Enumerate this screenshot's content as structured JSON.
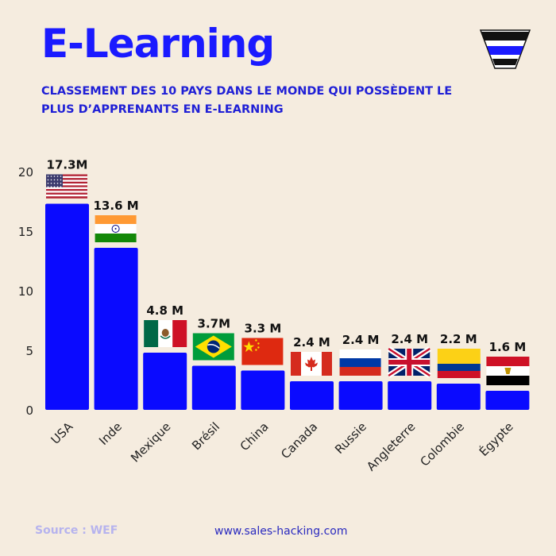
{
  "header": {
    "title": "E-Learning",
    "subtitle": "CLASSEMENT DES 10 PAYS DANS LE MONDE QUI POSSÈDENT LE PLUS D’APPRENANTS EN E-LEARNING"
  },
  "footer": {
    "source": "Source : WEF",
    "website": "www.sales-hacking.com"
  },
  "colors": {
    "bar": "#0a0aff",
    "title": "#1a1aff",
    "background": "#f5ecdf"
  },
  "chart_data": {
    "type": "bar",
    "categories": [
      "USA",
      "Inde",
      "Mexique",
      "Brésil",
      "China",
      "Canada",
      "Russie",
      "Angleterre",
      "Colombie",
      "Égypte"
    ],
    "values": [
      17.3,
      13.6,
      4.8,
      3.7,
      3.3,
      2.4,
      2.4,
      2.4,
      2.2,
      1.6
    ],
    "data_labels": [
      "17.3M",
      "13.6 M",
      "4.8 M",
      "3.7M",
      "3.3 M",
      "2.4 M",
      "2.4 M",
      "2.4 M",
      "2.2 M",
      "1.6 M"
    ],
    "flags": [
      "usa-flag",
      "india-flag",
      "mexico-flag",
      "brazil-flag",
      "china-flag",
      "canada-flag",
      "russia-flag",
      "uk-flag",
      "colombia-flag",
      "egypt-flag"
    ],
    "ylim": [
      0,
      20
    ],
    "yticks": [
      0,
      5,
      10,
      15,
      20
    ],
    "xlabel": "",
    "ylabel": "",
    "grid": false,
    "legend": "none"
  }
}
